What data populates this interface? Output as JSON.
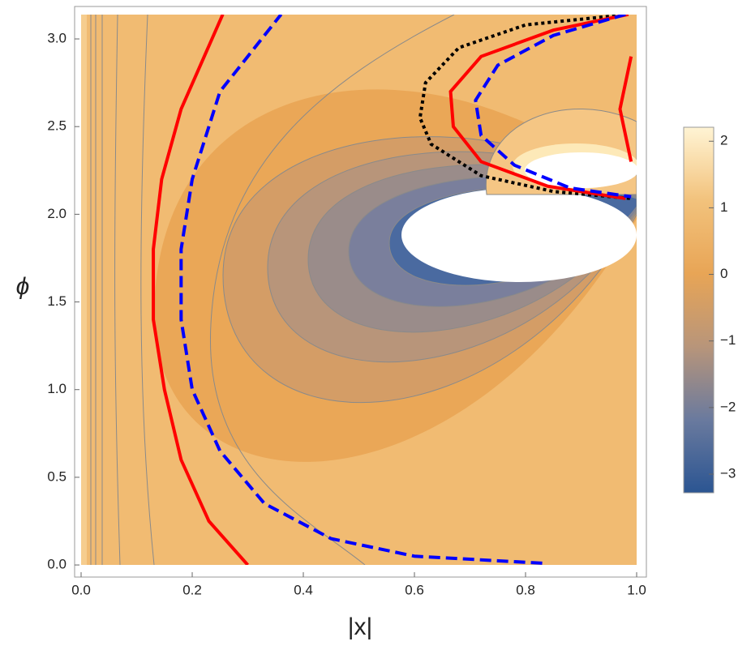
{
  "chart_data": {
    "type": "contour",
    "x_label": "|x|",
    "y_label": "ϕ",
    "xlim": [
      -0.0117,
      1.0175
    ],
    "ylim": [
      -0.069,
      3.185
    ],
    "xticks": [
      {
        "value": 0,
        "label": "0.0"
      },
      0.2,
      0.4,
      0.6,
      0.8,
      {
        "value": 1,
        "label": "1.0"
      }
    ],
    "yticks": [
      {
        "value": 0,
        "label": "0.0"
      },
      0.5,
      {
        "value": 1,
        "label": "1.0"
      },
      1.5,
      {
        "value": 2,
        "label": "2.0"
      },
      2.5,
      {
        "value": 3,
        "label": "3.0"
      }
    ],
    "series": [
      {
        "color": "#ff0000",
        "style": "solid",
        "x": [
          0.3,
          0.23,
          0.18,
          0.15,
          0.13,
          0.13,
          0.145,
          0.18,
          0.255
        ],
        "values": [
          0.0,
          0.25,
          0.6,
          1.0,
          1.4,
          1.8,
          2.2,
          2.6,
          3.14
        ]
      },
      {
        "color": "#0000ff",
        "style": "dashed",
        "x": [
          0.83,
          0.6,
          0.45,
          0.33,
          0.25,
          0.2,
          0.18,
          0.18,
          0.2,
          0.25,
          0.36
        ],
        "values": [
          0.01,
          0.05,
          0.15,
          0.35,
          0.65,
          1.0,
          1.4,
          1.8,
          2.2,
          2.7,
          3.14
        ]
      },
      {
        "color": "#000000",
        "style": "dotted",
        "x": [
          0.985,
          0.8,
          0.68,
          0.62,
          0.61,
          0.63,
          0.72,
          0.85,
          0.99
        ],
        "values": [
          3.14,
          3.08,
          2.95,
          2.75,
          2.55,
          2.4,
          2.22,
          2.13,
          2.09
        ]
      },
      {
        "color": "#ff0000",
        "style": "solid",
        "x": [
          0.985,
          0.85,
          0.72,
          0.665,
          0.67,
          0.72,
          0.84,
          0.98
        ],
        "values": [
          3.14,
          3.05,
          2.9,
          2.7,
          2.5,
          2.3,
          2.16,
          2.09
        ]
      },
      {
        "color": "#0000ff",
        "style": "dashed",
        "x": [
          0.98,
          0.85,
          0.75,
          0.71,
          0.72,
          0.78,
          0.88,
          0.99
        ],
        "values": [
          3.14,
          3.02,
          2.85,
          2.65,
          2.45,
          2.28,
          2.15,
          2.1
        ]
      },
      {
        "color": "#ff0000",
        "style": "solid",
        "x": [
          0.99,
          0.97,
          0.99
        ],
        "values": [
          2.9,
          2.6,
          2.3
        ]
      }
    ],
    "colorbar": {
      "lim": [
        -3.28,
        2.21
      ],
      "ticks": [
        {
          "value": -3,
          "label": "−3"
        },
        {
          "value": -2,
          "label": "−2"
        },
        {
          "value": -1,
          "label": "−1"
        },
        0,
        1,
        2
      ],
      "colors": [
        "#2b5592",
        "#6a7a9e",
        "#b8957a",
        "#e8a556",
        "#f2c27c",
        "#fff4d4"
      ]
    }
  }
}
